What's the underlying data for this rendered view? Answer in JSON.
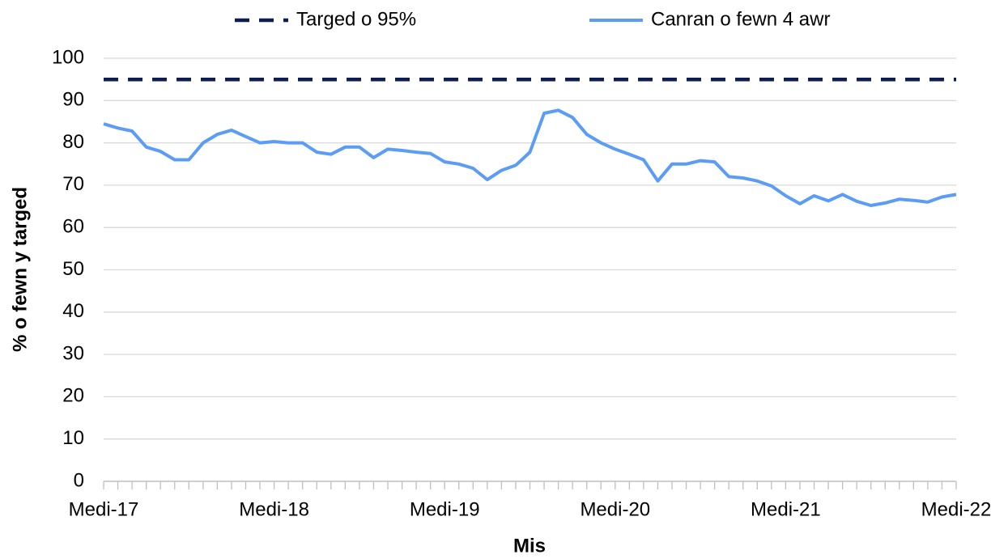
{
  "chart_data": {
    "type": "line",
    "xlabel": "Mis",
    "ylabel": "% o fewn y targed",
    "categories": [
      "Medi-17",
      null,
      null,
      null,
      null,
      null,
      null,
      null,
      null,
      null,
      null,
      null,
      "Medi-18",
      null,
      null,
      null,
      null,
      null,
      null,
      null,
      null,
      null,
      null,
      null,
      "Medi-19",
      null,
      null,
      null,
      null,
      null,
      null,
      null,
      null,
      null,
      null,
      null,
      "Medi-20",
      null,
      null,
      null,
      null,
      null,
      null,
      null,
      null,
      null,
      null,
      null,
      "Medi-21",
      null,
      null,
      null,
      null,
      null,
      null,
      null,
      null,
      null,
      null,
      null,
      "Medi-22"
    ],
    "series": [
      {
        "name": "Targed o 95%",
        "color": "#0e1e50",
        "dashed": true,
        "values": [
          95,
          95,
          95,
          95,
          95,
          95,
          95,
          95,
          95,
          95,
          95,
          95,
          95,
          95,
          95,
          95,
          95,
          95,
          95,
          95,
          95,
          95,
          95,
          95,
          95,
          95,
          95,
          95,
          95,
          95,
          95,
          95,
          95,
          95,
          95,
          95,
          95,
          95,
          95,
          95,
          95,
          95,
          95,
          95,
          95,
          95,
          95,
          95,
          95,
          95,
          95,
          95,
          95,
          95,
          95,
          95,
          95,
          95,
          95,
          95,
          95
        ]
      },
      {
        "name": "Canran o fewn 4 awr",
        "color": "#5b9cf6",
        "dashed": false,
        "values": [
          84.5,
          83.5,
          82.8,
          79,
          78,
          76,
          76,
          80,
          82,
          83,
          81.5,
          80,
          80.3,
          80,
          80,
          77.8,
          77.3,
          79,
          79,
          76.5,
          78.5,
          78.2,
          77.8,
          77.5,
          75.5,
          75,
          74,
          71.3,
          73.5,
          74.7,
          77.8,
          87,
          87.7,
          86,
          82,
          80,
          78.5,
          77.3,
          76,
          71,
          75,
          75,
          75.8,
          75.5,
          72,
          71.7,
          71,
          69.8,
          67.5,
          65.6,
          67.5,
          66.3,
          67.8,
          66.2,
          65.2,
          65.8,
          66.7,
          66.4,
          66,
          67.2,
          67.8
        ]
      }
    ],
    "ylim": [
      0,
      100
    ],
    "yticks": [
      0,
      10,
      20,
      30,
      40,
      50,
      60,
      70,
      80,
      90,
      100
    ],
    "grid": true,
    "legend": "top"
  }
}
